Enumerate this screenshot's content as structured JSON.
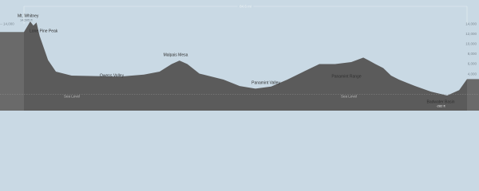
{
  "chart_data": {
    "type": "area",
    "distance_label": "84.6 mi",
    "x": [
      0,
      1.2,
      1.8,
      2.4,
      3.0,
      3.8,
      4.6,
      6.1,
      9.1,
      13.7,
      18.3,
      22.9,
      25.9,
      28.2,
      29.7,
      31.2,
      33.5,
      38.1,
      41.2,
      44.2,
      47.2,
      50.3,
      53.4,
      56.4,
      59.4,
      62.5,
      64.8,
      65.9,
      67.1,
      68.6,
      70.1,
      71.6,
      74.7,
      77.7,
      80.8,
      83.1,
      84.6
    ],
    "values": [
      12400,
      14505,
      13700,
      14300,
      11600,
      9200,
      6800,
      4500,
      3700,
      3600,
      3500,
      3900,
      4500,
      6000,
      6700,
      6000,
      4100,
      2900,
      1600,
      1100,
      1500,
      2900,
      4500,
      6000,
      6000,
      6400,
      7300,
      6700,
      6000,
      5200,
      3700,
      2900,
      1600,
      500,
      -282,
      800,
      3000
    ],
    "color": "#5b5b5b",
    "xlim": [
      0,
      84.6
    ],
    "ylim": [
      -3300,
      18800
    ],
    "yticks": [
      {
        "value": 14000,
        "label": "14,000"
      },
      {
        "value": 12000,
        "label": "12,000"
      },
      {
        "value": 10000,
        "label": "10,000"
      },
      {
        "value": 8000,
        "label": "8,000"
      },
      {
        "value": 6000,
        "label": "6,000"
      },
      {
        "value": 4000,
        "label": "4,000"
      },
      {
        "value": 2000,
        "label": "2,000 ft"
      }
    ],
    "sea_level": {
      "value": 0,
      "label": "Sea Level"
    },
    "annotations": [
      {
        "label": "Mt. Whitney",
        "sublabel": "14,505 ft"
      },
      {
        "label": "Lone Pine Peak"
      },
      {
        "label": "Owens Valley"
      },
      {
        "label": "Malpais Mesa"
      },
      {
        "label": "Panamint Valley"
      },
      {
        "label": "Panamint Range"
      },
      {
        "label": "Badwater Basin",
        "sublabel": "-282 ft"
      }
    ]
  }
}
